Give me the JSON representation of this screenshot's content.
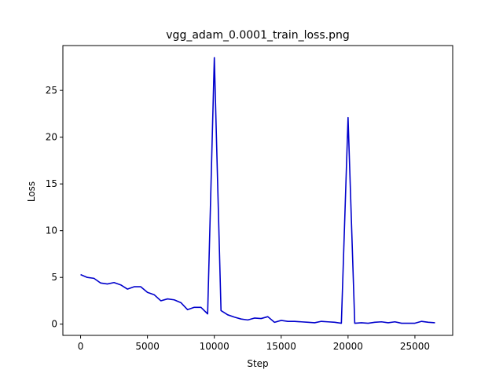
{
  "chart_data": {
    "type": "line",
    "title": "vgg_adam_0.0001_train_loss.png",
    "xlabel": "Step",
    "ylabel": "Loss",
    "xlim": [
      -1325,
      27825
    ],
    "ylim": [
      -1.2,
      29.8
    ],
    "xticks": [
      0,
      5000,
      10000,
      15000,
      20000,
      25000
    ],
    "xtick_labels": [
      "0",
      "5000",
      "10000",
      "15000",
      "20000",
      "25000"
    ],
    "yticks": [
      0,
      5,
      10,
      15,
      20,
      25
    ],
    "ytick_labels": [
      "0",
      "5",
      "10",
      "15",
      "20",
      "25"
    ],
    "grid": false,
    "series": [
      {
        "color": "#0000cc",
        "x": [
          0,
          500,
          1000,
          1500,
          2000,
          2500,
          3000,
          3500,
          4000,
          4500,
          5000,
          5500,
          6000,
          6500,
          7000,
          7500,
          8000,
          8500,
          9000,
          9500,
          10000,
          10500,
          11000,
          11500,
          12000,
          12500,
          13000,
          13500,
          14000,
          14500,
          15000,
          15500,
          16000,
          16500,
          17000,
          17500,
          18000,
          18500,
          19000,
          19500,
          20000,
          20500,
          21000,
          21500,
          22000,
          22500,
          23000,
          23500,
          24000,
          24500,
          25000,
          25500,
          26000,
          26500
        ],
        "y": [
          5.3,
          5.0,
          4.9,
          4.4,
          4.3,
          4.45,
          4.2,
          3.75,
          4.0,
          4.0,
          3.4,
          3.15,
          2.5,
          2.7,
          2.6,
          2.3,
          1.55,
          1.8,
          1.8,
          1.1,
          28.5,
          1.45,
          1.0,
          0.75,
          0.55,
          0.45,
          0.65,
          0.6,
          0.8,
          0.2,
          0.4,
          0.3,
          0.3,
          0.25,
          0.2,
          0.15,
          0.3,
          0.25,
          0.2,
          0.1,
          22.1,
          0.1,
          0.15,
          0.1,
          0.2,
          0.25,
          0.15,
          0.25,
          0.1,
          0.1,
          0.1,
          0.3,
          0.2,
          0.15
        ]
      }
    ]
  }
}
